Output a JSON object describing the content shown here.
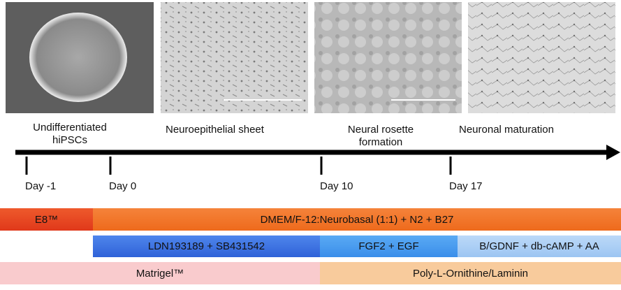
{
  "stages": [
    {
      "label": "Undifferentiated\nhiPSCs"
    },
    {
      "label": "Neuroepithelial sheet"
    },
    {
      "label": "Neural rosette\nformation"
    },
    {
      "label": "Neuronal maturation"
    }
  ],
  "days": [
    "Day -1",
    "Day 0",
    "Day 10",
    "Day 17"
  ],
  "media": {
    "row1": [
      "E8™",
      "DMEM/F-12:Neurobasal (1:1) + N2 + B27"
    ],
    "row2": [
      "LDN193189 + SB431542",
      "FGF2 + EGF",
      "B/GDNF + db-cAMP + AA"
    ],
    "row3": [
      "Matrigel™",
      "Poly-L-Ornithine/Laminin"
    ]
  }
}
